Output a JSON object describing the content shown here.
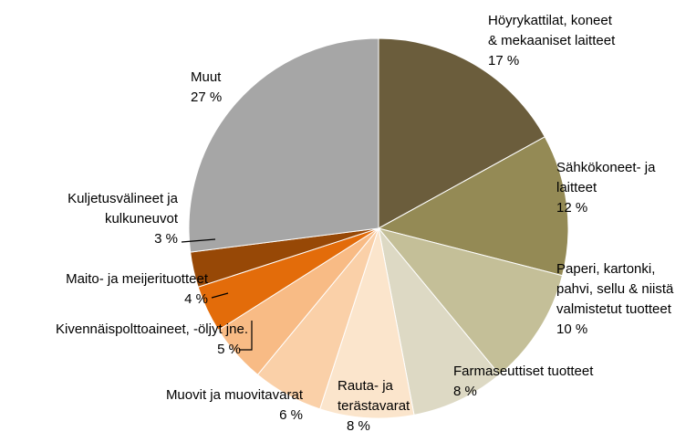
{
  "chart_data": {
    "type": "pie",
    "categories": [
      [
        "Höyrykattilat, koneet",
        "& mekaaniset laitteet"
      ],
      [
        "Sähkökoneet- ja",
        "laitteet"
      ],
      [
        "Paperi, kartonki,",
        "pahvi, sellu & niistä",
        "valmistetut tuotteet"
      ],
      [
        "Farmaseuttiset tuotteet"
      ],
      [
        "Rauta- ja",
        "terästavarat"
      ],
      [
        "Muovit ja muovitavarat"
      ],
      [
        "Kivennäispolttoaineet, -öljyt jne."
      ],
      [
        "Maito- ja meijerituotteet"
      ],
      [
        "Kuljetusvälineet ja",
        "kulkuneuvot"
      ],
      [
        "Muut"
      ]
    ],
    "values": [
      17,
      12,
      10,
      8,
      8,
      6,
      5,
      4,
      3,
      27
    ],
    "value_labels": [
      "17 %",
      "12 %",
      "10 %",
      "8 %",
      "8 %",
      "6 %",
      "5 %",
      "4 %",
      "3 %",
      "27 %"
    ],
    "colors": [
      "#6b5d3c",
      "#948a55",
      "#c4bf98",
      "#ddd9c4",
      "#fbe5cc",
      "#fad0a8",
      "#f8bb85",
      "#e36c0a",
      "#974806",
      "#a6a6a6"
    ]
  }
}
